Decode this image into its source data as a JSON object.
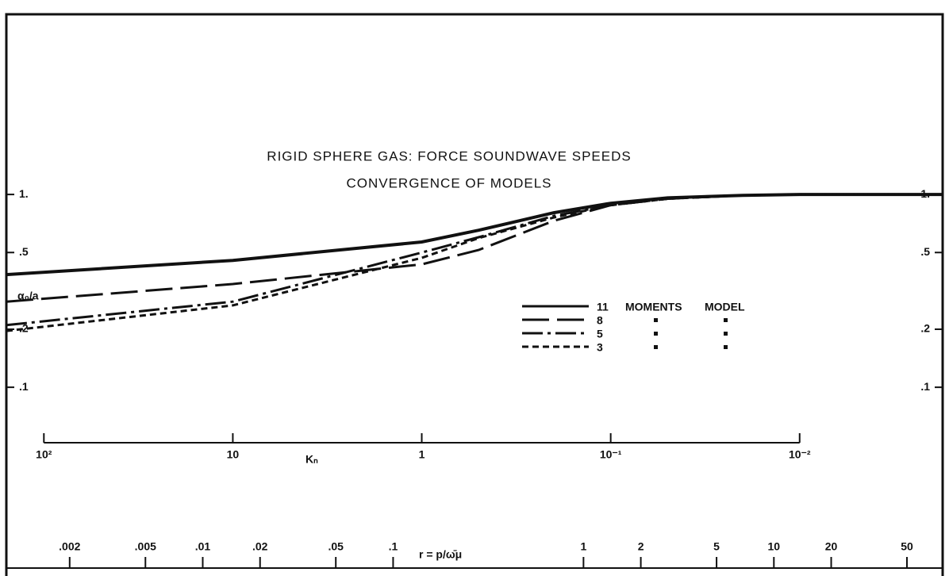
{
  "chart_data": {
    "type": "line",
    "title": "RIGID SPHERE GAS: FORCE SOUNDWAVE SPEEDS",
    "subtitle": "CONVERGENCE OF MODELS",
    "y_label": "α₀/a",
    "x_label": "Kₙ",
    "x2_label": "r = p/ω̄μ",
    "legend_words": [
      "MOMENTS",
      "MODEL"
    ],
    "log_x": true,
    "log_y": true,
    "xlim": [
      158,
      0.00175
    ],
    "xticks": [
      {
        "value": 100,
        "label": "10²"
      },
      10,
      1,
      {
        "value": 0.1,
        "label": "10⁻¹"
      },
      {
        "value": 0.01,
        "label": "10⁻²"
      }
    ],
    "x2lim": [
      0.00093,
      77
    ],
    "x2ticks": [
      {
        "value": 0.002,
        "label": ".002"
      },
      {
        "value": 0.005,
        "label": ".005"
      },
      {
        "value": 0.01,
        "label": ".01"
      },
      {
        "value": 0.02,
        "label": ".02"
      },
      {
        "value": 0.05,
        "label": ".05"
      },
      {
        "value": 0.1,
        "label": ".1"
      },
      1,
      2,
      5,
      10,
      20,
      50
    ],
    "ylim": [
      0.0105,
      8.6
    ],
    "yticks": [
      {
        "value": 1,
        "label": "1."
      },
      {
        "value": 0.5,
        "label": ".5"
      },
      {
        "value": 0.2,
        "label": ".2"
      },
      {
        "value": 0.1,
        "label": ".1"
      }
    ],
    "x": [
      158,
      10,
      1,
      0.5,
      0.2,
      0.1,
      0.05,
      0.02,
      0.01,
      0.00175
    ],
    "series": [
      {
        "name": "11",
        "color": "#111",
        "linestyle": "solid",
        "values": [
          0.384,
          0.455,
          0.567,
          0.652,
          0.804,
          0.9,
          0.96,
          0.99,
          1.0,
          1.0
        ]
      },
      {
        "name": "8",
        "color": "#111",
        "linestyle": "longdash",
        "values": [
          0.278,
          0.343,
          0.434,
          0.515,
          0.73,
          0.88,
          0.95,
          0.99,
          1.0,
          1.0
        ]
      },
      {
        "name": "5",
        "color": "#111",
        "linestyle": "dashdot",
        "values": [
          0.21,
          0.278,
          0.5,
          0.6,
          0.774,
          0.88,
          0.95,
          0.99,
          1.0,
          1.0
        ]
      },
      {
        "name": "3",
        "color": "#111",
        "linestyle": "shortdash",
        "values": [
          0.196,
          0.266,
          0.469,
          0.594,
          0.76,
          0.88,
          0.95,
          0.99,
          1.0,
          1.0
        ]
      }
    ]
  }
}
